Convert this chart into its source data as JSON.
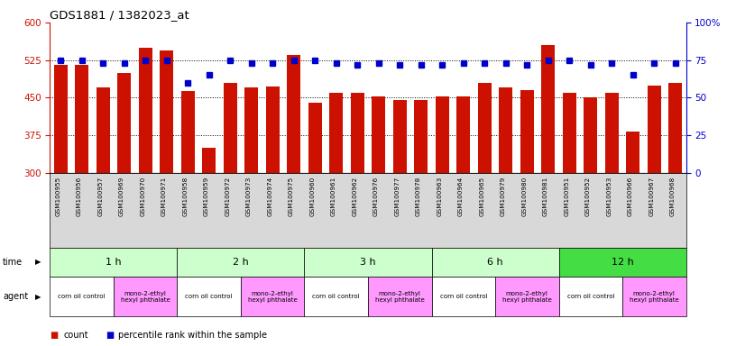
{
  "title": "GDS1881 / 1382023_at",
  "samples": [
    "GSM100955",
    "GSM100956",
    "GSM100957",
    "GSM100969",
    "GSM100970",
    "GSM100971",
    "GSM100958",
    "GSM100959",
    "GSM100972",
    "GSM100973",
    "GSM100974",
    "GSM100975",
    "GSM100960",
    "GSM100961",
    "GSM100962",
    "GSM100976",
    "GSM100977",
    "GSM100978",
    "GSM100963",
    "GSM100964",
    "GSM100965",
    "GSM100979",
    "GSM100980",
    "GSM100981",
    "GSM100951",
    "GSM100952",
    "GSM100953",
    "GSM100966",
    "GSM100967",
    "GSM100968"
  ],
  "counts": [
    515,
    515,
    470,
    500,
    550,
    545,
    463,
    350,
    480,
    470,
    472,
    535,
    440,
    460,
    460,
    453,
    445,
    445,
    453,
    453,
    480,
    470,
    465,
    555,
    460,
    450,
    460,
    383,
    475,
    480
  ],
  "percentiles": [
    75,
    75,
    73,
    73,
    75,
    75,
    60,
    65,
    75,
    73,
    73,
    75,
    75,
    73,
    72,
    73,
    72,
    72,
    72,
    73,
    73,
    73,
    72,
    75,
    75,
    72,
    73,
    65,
    73,
    73
  ],
  "ylim_left": [
    300,
    600
  ],
  "ylim_right": [
    0,
    100
  ],
  "yticks_left": [
    300,
    375,
    450,
    525,
    600
  ],
  "yticks_right": [
    0,
    25,
    50,
    75,
    100
  ],
  "bar_color": "#cc1100",
  "dot_color": "#0000cc",
  "xtick_bg": "#d8d8d8",
  "time_groups": [
    {
      "label": "1 h",
      "start": 0,
      "end": 6,
      "color": "#ccffcc"
    },
    {
      "label": "2 h",
      "start": 6,
      "end": 12,
      "color": "#ccffcc"
    },
    {
      "label": "3 h",
      "start": 12,
      "end": 18,
      "color": "#ccffcc"
    },
    {
      "label": "6 h",
      "start": 18,
      "end": 24,
      "color": "#ccffcc"
    },
    {
      "label": "12 h",
      "start": 24,
      "end": 30,
      "color": "#44dd44"
    }
  ],
  "agent_groups": [
    {
      "label": "corn oil control",
      "start": 0,
      "end": 3,
      "color": "#ffffff"
    },
    {
      "label": "mono-2-ethyl\nhexyl phthalate",
      "start": 3,
      "end": 6,
      "color": "#ff99ff"
    },
    {
      "label": "corn oil control",
      "start": 6,
      "end": 9,
      "color": "#ffffff"
    },
    {
      "label": "mono-2-ethyl\nhexyl phthalate",
      "start": 9,
      "end": 12,
      "color": "#ff99ff"
    },
    {
      "label": "corn oil control",
      "start": 12,
      "end": 15,
      "color": "#ffffff"
    },
    {
      "label": "mono-2-ethyl\nhexyl phthalate",
      "start": 15,
      "end": 18,
      "color": "#ff99ff"
    },
    {
      "label": "corn oil control",
      "start": 18,
      "end": 21,
      "color": "#ffffff"
    },
    {
      "label": "mono-2-ethyl\nhexyl phthalate",
      "start": 21,
      "end": 24,
      "color": "#ff99ff"
    },
    {
      "label": "corn oil control",
      "start": 24,
      "end": 27,
      "color": "#ffffff"
    },
    {
      "label": "mono-2-ethyl\nhexyl phthalate",
      "start": 27,
      "end": 30,
      "color": "#ff99ff"
    }
  ]
}
